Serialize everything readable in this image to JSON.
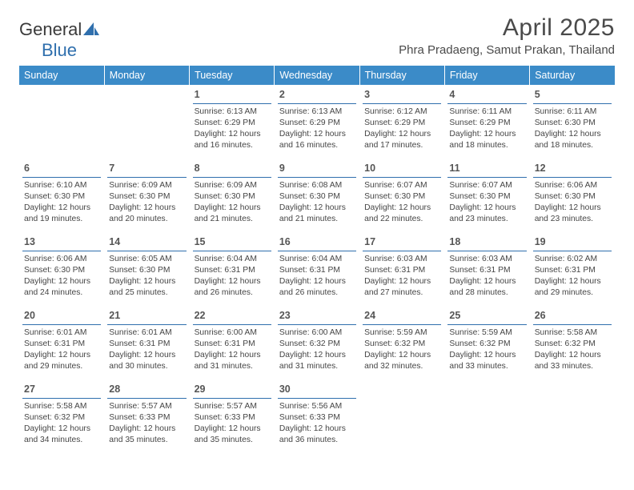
{
  "brand": {
    "part1": "General",
    "part2": "Blue"
  },
  "title": "April 2025",
  "location": "Phra Pradaeng, Samut Prakan, Thailand",
  "colors": {
    "header_bg": "#3b8bc8",
    "header_text": "#ffffff",
    "rule": "#2f6fad",
    "text": "#454545",
    "daynum": "#555555",
    "brand_gray": "#5a5a5a",
    "brand_blue": "#2f6fad"
  },
  "typography": {
    "month_title_pt": 30,
    "location_pt": 15,
    "weekday_pt": 12.5,
    "daynum_pt": 12.5,
    "body_pt": 10.3
  },
  "weekdays": [
    "Sunday",
    "Monday",
    "Tuesday",
    "Wednesday",
    "Thursday",
    "Friday",
    "Saturday"
  ],
  "weeks": [
    [
      null,
      null,
      {
        "n": "1",
        "sr": "6:13 AM",
        "ss": "6:29 PM",
        "dl": "12 hours and 16 minutes."
      },
      {
        "n": "2",
        "sr": "6:13 AM",
        "ss": "6:29 PM",
        "dl": "12 hours and 16 minutes."
      },
      {
        "n": "3",
        "sr": "6:12 AM",
        "ss": "6:29 PM",
        "dl": "12 hours and 17 minutes."
      },
      {
        "n": "4",
        "sr": "6:11 AM",
        "ss": "6:29 PM",
        "dl": "12 hours and 18 minutes."
      },
      {
        "n": "5",
        "sr": "6:11 AM",
        "ss": "6:30 PM",
        "dl": "12 hours and 18 minutes."
      }
    ],
    [
      {
        "n": "6",
        "sr": "6:10 AM",
        "ss": "6:30 PM",
        "dl": "12 hours and 19 minutes."
      },
      {
        "n": "7",
        "sr": "6:09 AM",
        "ss": "6:30 PM",
        "dl": "12 hours and 20 minutes."
      },
      {
        "n": "8",
        "sr": "6:09 AM",
        "ss": "6:30 PM",
        "dl": "12 hours and 21 minutes."
      },
      {
        "n": "9",
        "sr": "6:08 AM",
        "ss": "6:30 PM",
        "dl": "12 hours and 21 minutes."
      },
      {
        "n": "10",
        "sr": "6:07 AM",
        "ss": "6:30 PM",
        "dl": "12 hours and 22 minutes."
      },
      {
        "n": "11",
        "sr": "6:07 AM",
        "ss": "6:30 PM",
        "dl": "12 hours and 23 minutes."
      },
      {
        "n": "12",
        "sr": "6:06 AM",
        "ss": "6:30 PM",
        "dl": "12 hours and 23 minutes."
      }
    ],
    [
      {
        "n": "13",
        "sr": "6:06 AM",
        "ss": "6:30 PM",
        "dl": "12 hours and 24 minutes."
      },
      {
        "n": "14",
        "sr": "6:05 AM",
        "ss": "6:30 PM",
        "dl": "12 hours and 25 minutes."
      },
      {
        "n": "15",
        "sr": "6:04 AM",
        "ss": "6:31 PM",
        "dl": "12 hours and 26 minutes."
      },
      {
        "n": "16",
        "sr": "6:04 AM",
        "ss": "6:31 PM",
        "dl": "12 hours and 26 minutes."
      },
      {
        "n": "17",
        "sr": "6:03 AM",
        "ss": "6:31 PM",
        "dl": "12 hours and 27 minutes."
      },
      {
        "n": "18",
        "sr": "6:03 AM",
        "ss": "6:31 PM",
        "dl": "12 hours and 28 minutes."
      },
      {
        "n": "19",
        "sr": "6:02 AM",
        "ss": "6:31 PM",
        "dl": "12 hours and 29 minutes."
      }
    ],
    [
      {
        "n": "20",
        "sr": "6:01 AM",
        "ss": "6:31 PM",
        "dl": "12 hours and 29 minutes."
      },
      {
        "n": "21",
        "sr": "6:01 AM",
        "ss": "6:31 PM",
        "dl": "12 hours and 30 minutes."
      },
      {
        "n": "22",
        "sr": "6:00 AM",
        "ss": "6:31 PM",
        "dl": "12 hours and 31 minutes."
      },
      {
        "n": "23",
        "sr": "6:00 AM",
        "ss": "6:32 PM",
        "dl": "12 hours and 31 minutes."
      },
      {
        "n": "24",
        "sr": "5:59 AM",
        "ss": "6:32 PM",
        "dl": "12 hours and 32 minutes."
      },
      {
        "n": "25",
        "sr": "5:59 AM",
        "ss": "6:32 PM",
        "dl": "12 hours and 33 minutes."
      },
      {
        "n": "26",
        "sr": "5:58 AM",
        "ss": "6:32 PM",
        "dl": "12 hours and 33 minutes."
      }
    ],
    [
      {
        "n": "27",
        "sr": "5:58 AM",
        "ss": "6:32 PM",
        "dl": "12 hours and 34 minutes."
      },
      {
        "n": "28",
        "sr": "5:57 AM",
        "ss": "6:33 PM",
        "dl": "12 hours and 35 minutes."
      },
      {
        "n": "29",
        "sr": "5:57 AM",
        "ss": "6:33 PM",
        "dl": "12 hours and 35 minutes."
      },
      {
        "n": "30",
        "sr": "5:56 AM",
        "ss": "6:33 PM",
        "dl": "12 hours and 36 minutes."
      },
      null,
      null,
      null
    ]
  ],
  "labels": {
    "sunrise": "Sunrise:",
    "sunset": "Sunset:",
    "daylight": "Daylight:"
  }
}
